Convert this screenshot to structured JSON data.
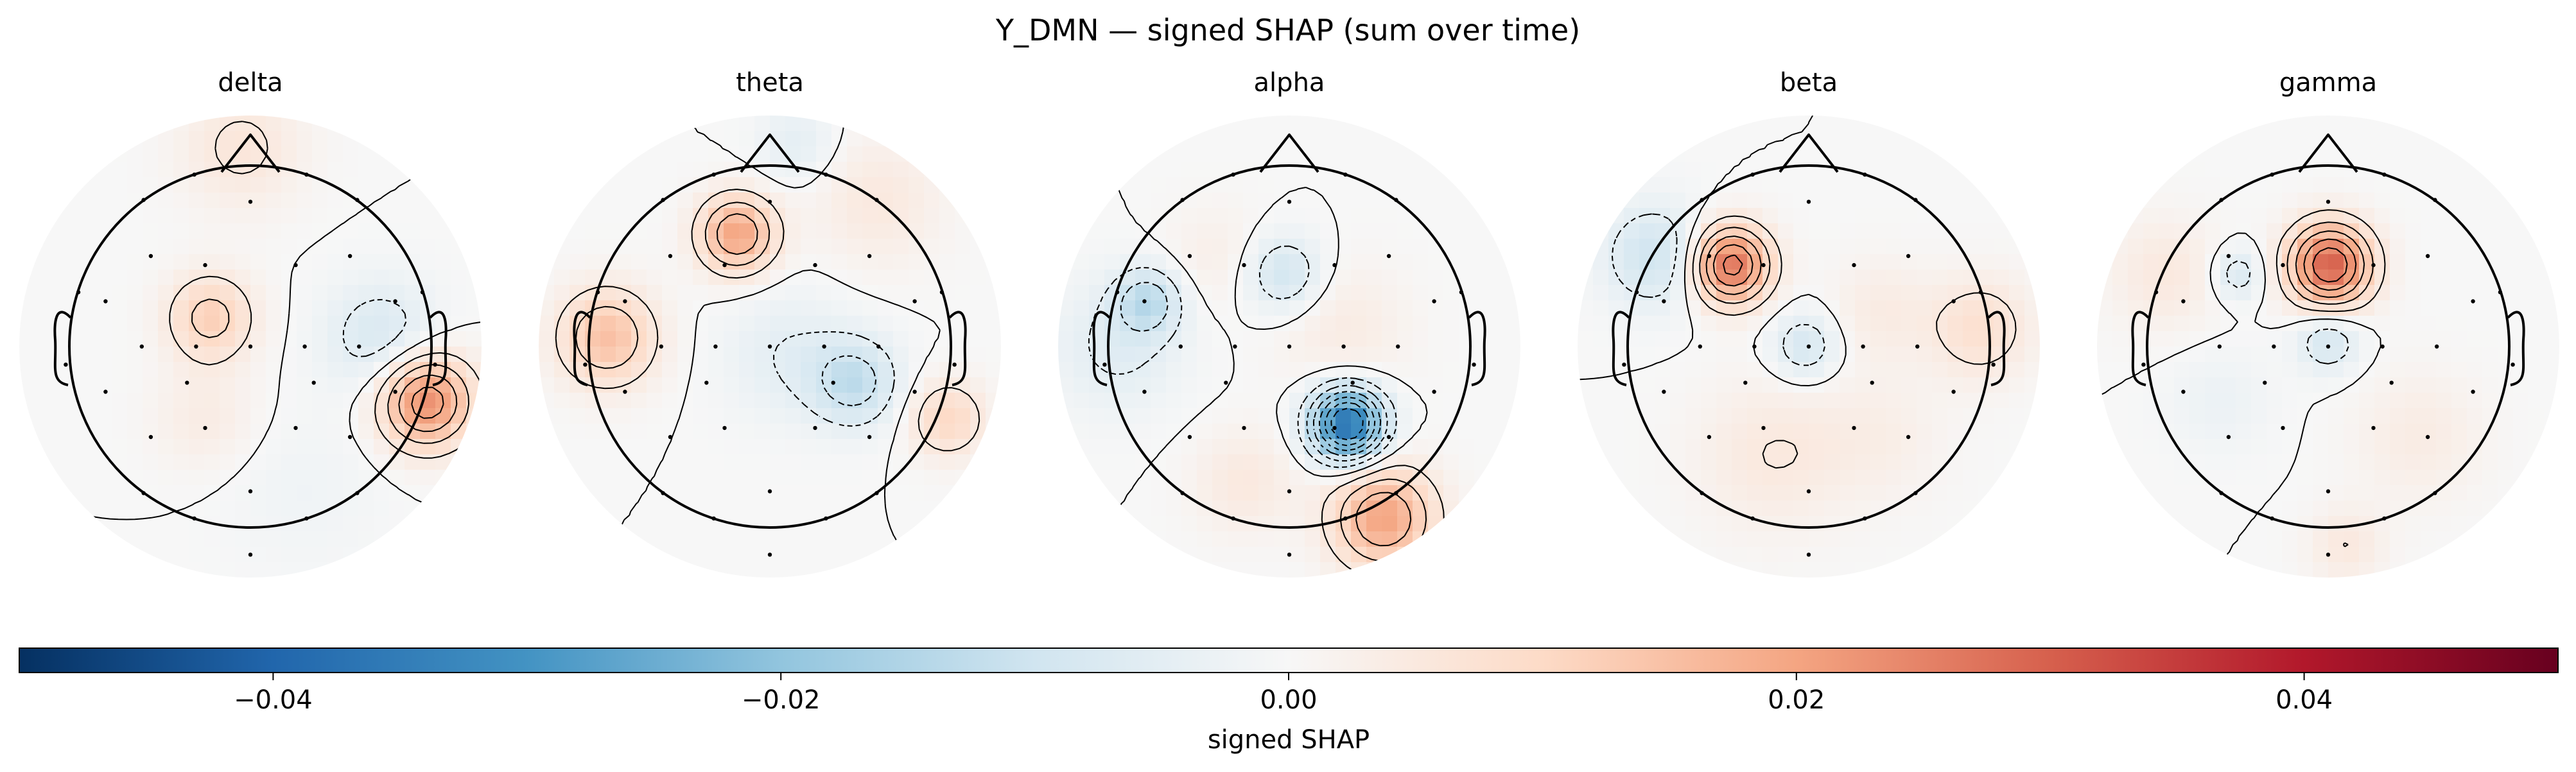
{
  "figure": {
    "title": "Y_DMN — signed SHAP (sum over time)"
  },
  "colors": {
    "cmap": [
      "#053061",
      "#2166ac",
      "#4393c3",
      "#92c5de",
      "#d1e5f0",
      "#f7f7f7",
      "#fddbc7",
      "#f4a582",
      "#d6604d",
      "#b2182b",
      "#67001f"
    ],
    "contour": "#000000",
    "head": "#000000"
  },
  "chart_data": {
    "type": "heatmap",
    "subtype": "topomap",
    "value_label": "signed SHAP",
    "vmin": -0.05,
    "vmax": 0.05,
    "colorbar": {
      "label": "signed SHAP",
      "ticks": [
        -0.04,
        -0.02,
        0.0,
        0.02,
        0.04
      ],
      "tick_labels": [
        "−0.04",
        "−0.02",
        "0.00",
        "0.02",
        "0.04"
      ],
      "orientation": "horizontal",
      "cmap": "RdBu_r"
    },
    "panels": [
      {
        "name": "delta",
        "extrema": [
          {
            "x": -0.22,
            "y": 0.16,
            "v": 0.012,
            "s": 0.17
          },
          {
            "x": 0.97,
            "y": -0.3,
            "v": 0.024,
            "s": 0.18
          },
          {
            "x": 0.72,
            "y": 0.05,
            "v": -0.008,
            "s": 0.22
          },
          {
            "x": -0.05,
            "y": 1.1,
            "v": 0.006,
            "s": 0.24
          },
          {
            "x": -0.25,
            "y": -0.4,
            "v": 0.004,
            "s": 0.2
          },
          {
            "x": 0.3,
            "y": -0.8,
            "v": -0.002,
            "s": 0.3
          }
        ]
      },
      {
        "name": "theta",
        "extrema": [
          {
            "x": -0.18,
            "y": 0.62,
            "v": 0.02,
            "s": 0.15
          },
          {
            "x": -0.9,
            "y": 0.05,
            "v": 0.015,
            "s": 0.19
          },
          {
            "x": 0.47,
            "y": -0.2,
            "v": -0.012,
            "s": 0.17
          },
          {
            "x": 0.1,
            "y": -0.05,
            "v": -0.005,
            "s": 0.25
          },
          {
            "x": 0.98,
            "y": -0.4,
            "v": 0.01,
            "s": 0.15
          },
          {
            "x": 0.6,
            "y": 0.8,
            "v": 0.005,
            "s": 0.25
          },
          {
            "x": 0.15,
            "y": 1.12,
            "v": -0.005,
            "s": 0.15
          }
        ]
      },
      {
        "name": "alpha",
        "extrema": [
          {
            "x": 0.32,
            "y": -0.43,
            "v": -0.038,
            "s": 0.14
          },
          {
            "x": -0.03,
            "y": 0.4,
            "v": -0.01,
            "s": 0.15
          },
          {
            "x": -0.78,
            "y": 0.25,
            "v": -0.012,
            "s": 0.13
          },
          {
            "x": 0.52,
            "y": -0.95,
            "v": 0.02,
            "s": 0.2
          },
          {
            "x": -0.25,
            "y": -0.75,
            "v": 0.005,
            "s": 0.2
          },
          {
            "x": 0.3,
            "y": 0.1,
            "v": 0.004,
            "s": 0.25
          },
          {
            "x": -0.95,
            "y": 0.0,
            "v": -0.006,
            "s": 0.25
          },
          {
            "x": -0.4,
            "y": 0.5,
            "v": 0.003,
            "s": 0.2
          }
        ]
      },
      {
        "name": "beta",
        "extrema": [
          {
            "x": -0.43,
            "y": 0.45,
            "v": 0.028,
            "s": 0.15
          },
          {
            "x": -0.02,
            "y": 0.0,
            "v": -0.009,
            "s": 0.13
          },
          {
            "x": -0.85,
            "y": 0.5,
            "v": -0.01,
            "s": 0.2
          },
          {
            "x": 0.95,
            "y": 0.1,
            "v": 0.008,
            "s": 0.2
          },
          {
            "x": -0.2,
            "y": -0.6,
            "v": 0.005,
            "s": 0.3
          },
          {
            "x": 0.4,
            "y": 0.2,
            "v": 0.004,
            "s": 0.2
          },
          {
            "x": 0.4,
            "y": -0.5,
            "v": 0.003,
            "s": 0.25
          }
        ]
      },
      {
        "name": "gamma",
        "extrema": [
          {
            "x": 0.01,
            "y": 0.45,
            "v": 0.03,
            "s": 0.16
          },
          {
            "x": -0.5,
            "y": 0.4,
            "v": -0.008,
            "s": 0.1
          },
          {
            "x": 0.0,
            "y": 0.03,
            "v": -0.009,
            "s": 0.12
          },
          {
            "x": -0.9,
            "y": 0.4,
            "v": 0.005,
            "s": 0.22
          },
          {
            "x": 0.5,
            "y": -0.5,
            "v": 0.004,
            "s": 0.25
          },
          {
            "x": 0.1,
            "y": -1.1,
            "v": 0.005,
            "s": 0.15
          },
          {
            "x": -0.6,
            "y": -0.3,
            "v": -0.003,
            "s": 0.2
          }
        ]
      }
    ]
  }
}
